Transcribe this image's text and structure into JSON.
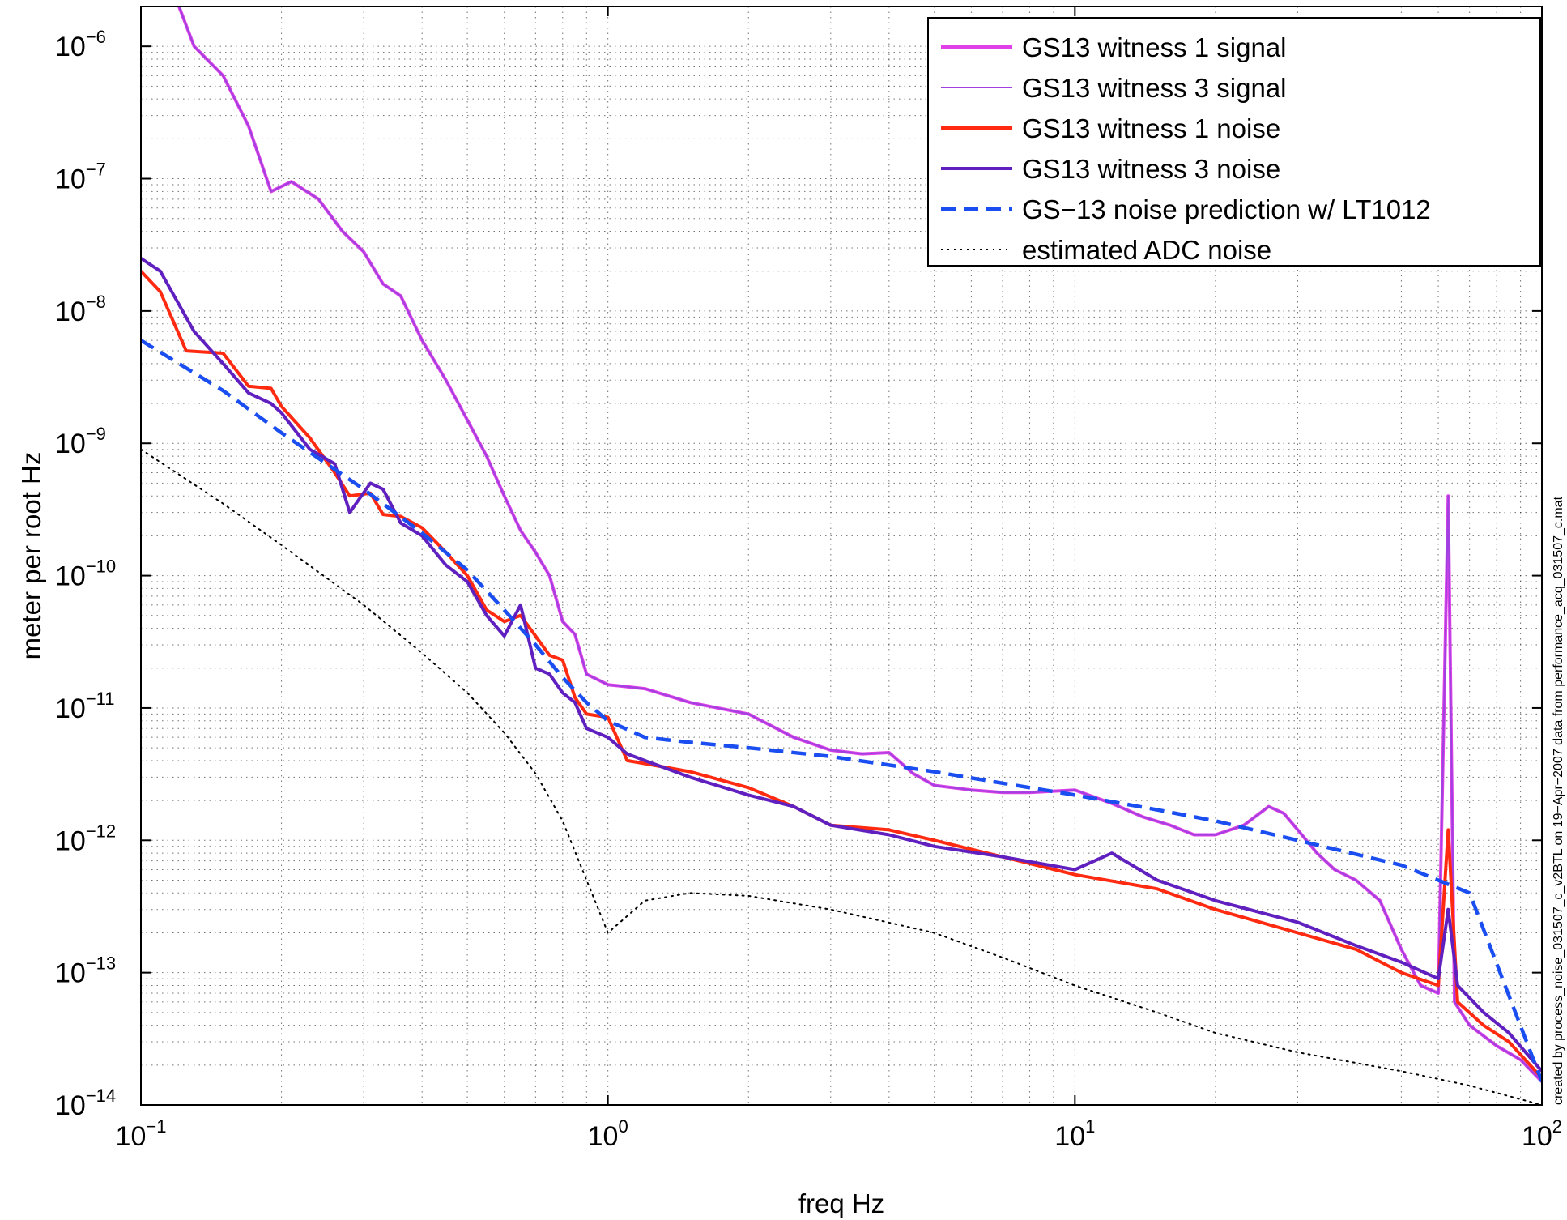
{
  "chart_data": {
    "type": "line",
    "xlabel": "freq Hz",
    "ylabel": "meter per root Hz",
    "x_scale": "log",
    "y_scale": "log",
    "xlim": [
      0.1,
      100
    ],
    "ylim": [
      1e-14,
      2e-06
    ],
    "grid": true,
    "legend_position": "top-right",
    "x_ticks": [
      {
        "base": "10",
        "exp": "−1",
        "value": 0.1
      },
      {
        "base": "10",
        "exp": "0",
        "value": 1
      },
      {
        "base": "10",
        "exp": "1",
        "value": 10
      },
      {
        "base": "10",
        "exp": "2",
        "value": 100
      }
    ],
    "y_ticks": [
      {
        "base": "10",
        "exp": "−6",
        "value": 1e-06
      },
      {
        "base": "10",
        "exp": "−7",
        "value": 1e-07
      },
      {
        "base": "10",
        "exp": "−8",
        "value": 1e-08
      },
      {
        "base": "10",
        "exp": "−9",
        "value": 1e-09
      },
      {
        "base": "10",
        "exp": "−10",
        "value": 1e-10
      },
      {
        "base": "10",
        "exp": "−11",
        "value": 1e-11
      },
      {
        "base": "10",
        "exp": "−12",
        "value": 1e-12
      },
      {
        "base": "10",
        "exp": "−13",
        "value": 1e-13
      },
      {
        "base": "10",
        "exp": "−14",
        "value": 1e-14
      }
    ],
    "series": [
      {
        "name": "GS13 witness 1 signal",
        "color": "#e040e8",
        "style": "solid-thick",
        "points": [
          [
            0.1,
            5e-06
          ],
          [
            0.12,
            2.1e-06
          ],
          [
            0.13,
            1e-06
          ],
          [
            0.15,
            6e-07
          ],
          [
            0.17,
            2.5e-07
          ],
          [
            0.19,
            8e-08
          ],
          [
            0.21,
            9.5e-08
          ],
          [
            0.24,
            7e-08
          ],
          [
            0.27,
            4e-08
          ],
          [
            0.3,
            2.8e-08
          ],
          [
            0.33,
            1.6e-08
          ],
          [
            0.36,
            1.3e-08
          ],
          [
            0.4,
            6e-09
          ],
          [
            0.45,
            3e-09
          ],
          [
            0.5,
            1.5e-09
          ],
          [
            0.55,
            8e-10
          ],
          [
            0.6,
            4e-10
          ],
          [
            0.65,
            2.2e-10
          ],
          [
            0.7,
            1.5e-10
          ],
          [
            0.75,
            1e-10
          ],
          [
            0.8,
            4.5e-11
          ],
          [
            0.85,
            3.6e-11
          ],
          [
            0.9,
            1.8e-11
          ],
          [
            1,
            1.5e-11
          ],
          [
            1.2,
            1.4e-11
          ],
          [
            1.5,
            1.1e-11
          ],
          [
            2,
            9e-12
          ],
          [
            2.5,
            6e-12
          ],
          [
            3,
            4.8e-12
          ],
          [
            3.5,
            4.5e-12
          ],
          [
            4,
            4.6e-12
          ],
          [
            4.5,
            3.2e-12
          ],
          [
            5,
            2.6e-12
          ],
          [
            6,
            2.4e-12
          ],
          [
            7,
            2.3e-12
          ],
          [
            8,
            2.3e-12
          ],
          [
            10,
            2.4e-12
          ],
          [
            12,
            1.9e-12
          ],
          [
            14,
            1.5e-12
          ],
          [
            16,
            1.3e-12
          ],
          [
            18,
            1.1e-12
          ],
          [
            20,
            1.1e-12
          ],
          [
            23,
            1.3e-12
          ],
          [
            26,
            1.8e-12
          ],
          [
            28,
            1.6e-12
          ],
          [
            30,
            1.2e-12
          ],
          [
            33,
            8e-13
          ],
          [
            36,
            6e-13
          ],
          [
            40,
            5e-13
          ],
          [
            45,
            3.5e-13
          ],
          [
            50,
            1.5e-13
          ],
          [
            55,
            8e-14
          ],
          [
            60,
            7e-14
          ],
          [
            63,
            4e-10
          ],
          [
            65,
            6e-14
          ],
          [
            70,
            4e-14
          ],
          [
            80,
            2.8e-14
          ],
          [
            90,
            2.2e-14
          ],
          [
            100,
            1.5e-14
          ]
        ]
      },
      {
        "name": "GS13 witness 3 signal",
        "color": "#a040e0",
        "style": "solid-thin",
        "points": [
          [
            0.1,
            5e-06
          ],
          [
            0.12,
            2.1e-06
          ],
          [
            0.13,
            1e-06
          ],
          [
            0.15,
            6e-07
          ],
          [
            0.17,
            2.5e-07
          ],
          [
            0.19,
            8e-08
          ],
          [
            0.21,
            9.5e-08
          ],
          [
            0.24,
            7e-08
          ],
          [
            0.27,
            4e-08
          ],
          [
            0.3,
            2.8e-08
          ],
          [
            0.33,
            1.6e-08
          ],
          [
            0.36,
            1.3e-08
          ],
          [
            0.4,
            6e-09
          ],
          [
            0.45,
            3e-09
          ],
          [
            0.5,
            1.5e-09
          ],
          [
            0.55,
            8e-10
          ],
          [
            0.6,
            4e-10
          ],
          [
            0.65,
            2.2e-10
          ],
          [
            0.7,
            1.5e-10
          ],
          [
            0.75,
            1e-10
          ],
          [
            0.8,
            4.5e-11
          ],
          [
            0.85,
            3.6e-11
          ],
          [
            0.9,
            1.8e-11
          ],
          [
            1,
            1.5e-11
          ],
          [
            1.2,
            1.4e-11
          ],
          [
            1.5,
            1.1e-11
          ],
          [
            2,
            9e-12
          ],
          [
            2.5,
            6e-12
          ],
          [
            3,
            4.8e-12
          ],
          [
            3.5,
            4.5e-12
          ],
          [
            4,
            4.6e-12
          ],
          [
            4.5,
            3.2e-12
          ],
          [
            5,
            2.6e-12
          ],
          [
            6,
            2.4e-12
          ],
          [
            7,
            2.3e-12
          ],
          [
            8,
            2.3e-12
          ],
          [
            10,
            2.4e-12
          ],
          [
            12,
            1.9e-12
          ],
          [
            14,
            1.5e-12
          ],
          [
            16,
            1.3e-12
          ],
          [
            18,
            1.1e-12
          ],
          [
            20,
            1.1e-12
          ],
          [
            23,
            1.3e-12
          ],
          [
            26,
            1.8e-12
          ],
          [
            28,
            1.6e-12
          ],
          [
            30,
            1.2e-12
          ],
          [
            33,
            8e-13
          ],
          [
            36,
            6e-13
          ],
          [
            40,
            5e-13
          ],
          [
            45,
            3.5e-13
          ],
          [
            50,
            1.5e-13
          ],
          [
            55,
            8e-14
          ],
          [
            60,
            7e-14
          ],
          [
            63,
            4e-10
          ],
          [
            65,
            6e-14
          ],
          [
            70,
            4e-14
          ],
          [
            80,
            2.8e-14
          ],
          [
            90,
            2.2e-14
          ],
          [
            100,
            1.5e-14
          ]
        ]
      },
      {
        "name": "GS13 witness 1 noise",
        "color": "#ff2a10",
        "style": "solid-thick",
        "points": [
          [
            0.1,
            2e-08
          ],
          [
            0.11,
            1.4e-08
          ],
          [
            0.125,
            5e-09
          ],
          [
            0.15,
            4.8e-09
          ],
          [
            0.17,
            2.7e-09
          ],
          [
            0.19,
            2.6e-09
          ],
          [
            0.2,
            1.9e-09
          ],
          [
            0.23,
            1.1e-09
          ],
          [
            0.26,
            6e-10
          ],
          [
            0.28,
            4e-10
          ],
          [
            0.31,
            4.2e-10
          ],
          [
            0.33,
            2.9e-10
          ],
          [
            0.36,
            2.8e-10
          ],
          [
            0.4,
            2.3e-10
          ],
          [
            0.45,
            1.5e-10
          ],
          [
            0.5,
            1e-10
          ],
          [
            0.55,
            5.5e-11
          ],
          [
            0.6,
            4.5e-11
          ],
          [
            0.65,
            5e-11
          ],
          [
            0.7,
            3.5e-11
          ],
          [
            0.75,
            2.5e-11
          ],
          [
            0.8,
            2.3e-11
          ],
          [
            0.85,
            1.2e-11
          ],
          [
            0.9,
            9e-12
          ],
          [
            1,
            8.5e-12
          ],
          [
            1.1,
            4e-12
          ],
          [
            1.2,
            3.8e-12
          ],
          [
            1.5,
            3.3e-12
          ],
          [
            2,
            2.5e-12
          ],
          [
            2.5,
            1.8e-12
          ],
          [
            3,
            1.3e-12
          ],
          [
            4,
            1.2e-12
          ],
          [
            5,
            1e-12
          ],
          [
            7,
            7.5e-13
          ],
          [
            10,
            5.5e-13
          ],
          [
            15,
            4.3e-13
          ],
          [
            20,
            3e-13
          ],
          [
            30,
            2e-13
          ],
          [
            40,
            1.5e-13
          ],
          [
            50,
            1e-13
          ],
          [
            60,
            8e-14
          ],
          [
            63,
            1.2e-12
          ],
          [
            66,
            6e-14
          ],
          [
            75,
            4e-14
          ],
          [
            85,
            3e-14
          ],
          [
            100,
            1.6e-14
          ]
        ]
      },
      {
        "name": "GS13 witness 3 noise",
        "color": "#6020c0",
        "style": "solid-thick",
        "points": [
          [
            0.1,
            2.5e-08
          ],
          [
            0.11,
            2e-08
          ],
          [
            0.13,
            7e-09
          ],
          [
            0.15,
            4e-09
          ],
          [
            0.17,
            2.4e-09
          ],
          [
            0.19,
            2e-09
          ],
          [
            0.2,
            1.7e-09
          ],
          [
            0.23,
            9e-10
          ],
          [
            0.26,
            7e-10
          ],
          [
            0.28,
            3e-10
          ],
          [
            0.31,
            5e-10
          ],
          [
            0.33,
            4.5e-10
          ],
          [
            0.36,
            2.5e-10
          ],
          [
            0.4,
            2e-10
          ],
          [
            0.45,
            1.2e-10
          ],
          [
            0.5,
            9e-11
          ],
          [
            0.55,
            5e-11
          ],
          [
            0.6,
            3.5e-11
          ],
          [
            0.65,
            6e-11
          ],
          [
            0.7,
            2e-11
          ],
          [
            0.75,
            1.8e-11
          ],
          [
            0.8,
            1.3e-11
          ],
          [
            0.85,
            1.1e-11
          ],
          [
            0.9,
            7e-12
          ],
          [
            1,
            6e-12
          ],
          [
            1.1,
            4.5e-12
          ],
          [
            1.2,
            4e-12
          ],
          [
            1.5,
            3e-12
          ],
          [
            2,
            2.2e-12
          ],
          [
            2.5,
            1.8e-12
          ],
          [
            3,
            1.3e-12
          ],
          [
            4,
            1.1e-12
          ],
          [
            5,
            9e-13
          ],
          [
            7,
            7.5e-13
          ],
          [
            10,
            6e-13
          ],
          [
            12,
            8e-13
          ],
          [
            15,
            5e-13
          ],
          [
            20,
            3.5e-13
          ],
          [
            30,
            2.4e-13
          ],
          [
            40,
            1.6e-13
          ],
          [
            50,
            1.2e-13
          ],
          [
            60,
            9e-14
          ],
          [
            63,
            3e-13
          ],
          [
            66,
            8e-14
          ],
          [
            75,
            5e-14
          ],
          [
            85,
            3.5e-14
          ],
          [
            100,
            1.8e-14
          ]
        ]
      },
      {
        "name": "GS−13 noise prediction w/ LT1012",
        "color": "#1a4ef0",
        "style": "dashed",
        "points": [
          [
            0.1,
            6e-09
          ],
          [
            0.15,
            2.5e-09
          ],
          [
            0.2,
            1.2e-09
          ],
          [
            0.3,
            4.5e-10
          ],
          [
            0.4,
            2.1e-10
          ],
          [
            0.5,
            1.1e-10
          ],
          [
            0.6,
            5.5e-11
          ],
          [
            0.7,
            3e-11
          ],
          [
            0.8,
            1.7e-11
          ],
          [
            0.9,
            1.1e-11
          ],
          [
            1,
            8e-12
          ],
          [
            1.2,
            6e-12
          ],
          [
            1.5,
            5.5e-12
          ],
          [
            2,
            5e-12
          ],
          [
            3,
            4.3e-12
          ],
          [
            5,
            3.3e-12
          ],
          [
            7,
            2.7e-12
          ],
          [
            10,
            2.2e-12
          ],
          [
            15,
            1.7e-12
          ],
          [
            20,
            1.4e-12
          ],
          [
            30,
            1e-12
          ],
          [
            50,
            6.5e-13
          ],
          [
            70,
            4e-13
          ],
          [
            100,
            1.5e-14
          ]
        ]
      },
      {
        "name": "estimated ADC noise",
        "color": "#000000",
        "style": "dotted",
        "points": [
          [
            0.1,
            9e-10
          ],
          [
            0.15,
            3.5e-10
          ],
          [
            0.2,
            1.7e-10
          ],
          [
            0.3,
            6e-11
          ],
          [
            0.4,
            2.6e-11
          ],
          [
            0.5,
            1.3e-11
          ],
          [
            0.6,
            6.5e-12
          ],
          [
            0.7,
            3.2e-12
          ],
          [
            0.8,
            1.4e-12
          ],
          [
            0.9,
            5e-13
          ],
          [
            1,
            2e-13
          ],
          [
            1.2,
            3.5e-13
          ],
          [
            1.5,
            4e-13
          ],
          [
            2,
            3.8e-13
          ],
          [
            3,
            3e-13
          ],
          [
            5,
            2e-13
          ],
          [
            7,
            1.3e-13
          ],
          [
            10,
            8e-14
          ],
          [
            15,
            5e-14
          ],
          [
            20,
            3.5e-14
          ],
          [
            30,
            2.5e-14
          ],
          [
            50,
            1.8e-14
          ],
          [
            70,
            1.4e-14
          ],
          [
            100,
            1e-14
          ]
        ]
      }
    ],
    "annotation": "created by process_noise_031507_c_v2BTL on 19−Apr−2007 data from performance_acq_031507_c.mat"
  }
}
